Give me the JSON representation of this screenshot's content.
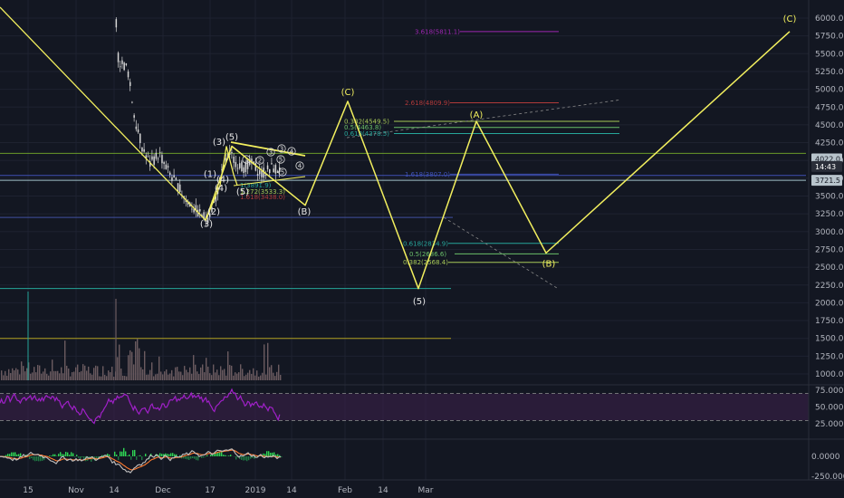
{
  "colors": {
    "background": "#131722",
    "grid": "#1e2230",
    "axis_text": "#b2b5be",
    "wave_path": "#f2ef5e",
    "wave_label": "#e8e8e8",
    "candles": "#d7d7d7",
    "volume": "#6b5b60",
    "rsi": "#a020c8",
    "rsi_band": "#3a1f4a",
    "macd_line": "#c0c0c0",
    "macd_signal": "#ff7a2f",
    "macd_hist": "#2fd655",
    "price_tag_white": "#b8c4cc",
    "price_tag_teal": "#1d6a7a",
    "price_tag_dark": "#2a2e39"
  },
  "chart_data": {
    "type": "line",
    "price_axis": {
      "ticks": [
        "6000.0",
        "5750.0",
        "5500.0",
        "5250.0",
        "5000.0",
        "4750.0",
        "4500.0",
        "4250.0",
        "4000.0",
        "3750.0",
        "3500.0",
        "3250.0",
        "3000.0",
        "2750.0",
        "2500.0",
        "2250.0",
        "2000.0",
        "1750.0",
        "1500.0",
        "1250.0",
        "1000.0"
      ],
      "values": [
        6000,
        5750,
        5500,
        5250,
        5000,
        4750,
        4500,
        4250,
        4000,
        3750,
        3500,
        3250,
        3000,
        2750,
        2500,
        2250,
        2000,
        1750,
        1500,
        1250,
        1000
      ],
      "ylim": [
        870,
        6320
      ]
    },
    "rsi_axis": {
      "ticks": [
        "75.0000",
        "50.0000",
        "25.0000"
      ],
      "values": [
        75,
        50,
        25
      ]
    },
    "macd_axis": {
      "ticks": [
        "0.0000",
        "-250.0000"
      ],
      "values": [
        0,
        -250
      ]
    },
    "x_axis": {
      "ticks": [
        "15",
        "Nov",
        "14",
        "Dec",
        "17",
        "2019",
        "14",
        "Feb",
        "14",
        "Mar"
      ]
    },
    "price_tags": [
      {
        "label": "4022.0",
        "value": 4022,
        "style": "white"
      },
      {
        "label": "14:43",
        "value": 3915,
        "style": "dark"
      },
      {
        "label": "3721.5",
        "value": 3721.5,
        "style": "white"
      }
    ],
    "wave_path": [
      {
        "label": "(3)",
        "price": 3160
      },
      {
        "label": "(4)",
        "price": 4200
      },
      {
        "label": "(5)",
        "price": 3370
      },
      {
        "label": "(C)",
        "price": 4830
      },
      {
        "label": "(5)",
        "price": 2200
      },
      {
        "label": "(A)",
        "price": 4550
      },
      {
        "label": "(B)",
        "price": 2700
      },
      {
        "label": "(C)",
        "price": 5811
      }
    ],
    "wave_labels": [
      {
        "text": "(3)",
        "price": 3120
      },
      {
        "text": "(4)",
        "price": 3620
      },
      {
        "text": "(5)",
        "price": 4340
      },
      {
        "text": "(3)",
        "price": 4270
      },
      {
        "text": "(1)",
        "price": 3820
      },
      {
        "text": "(2)",
        "price": 3290
      },
      {
        "text": "(4)",
        "price": 3740
      },
      {
        "text": "(5)",
        "price": 3570
      },
      {
        "text": "(B)",
        "price": 3290
      },
      {
        "text": "(C)",
        "price": 4970
      },
      {
        "text": "(5)",
        "price": 2030
      },
      {
        "text": "(A)",
        "price": 4650
      },
      {
        "text": "(B)",
        "price": 2560
      },
      {
        "text": "(C)",
        "price": 6000
      }
    ],
    "fib_levels": [
      {
        "label": "3.618(5811.1)",
        "price": 5811.1,
        "color": "#9c27b0"
      },
      {
        "label": "2.618(4809.9)",
        "price": 4809.9,
        "color": "#b03a3a"
      },
      {
        "label": "0.382(4549.5)",
        "price": 4549.5,
        "color": "#a7c957"
      },
      {
        "label": "0.5(4463.8)",
        "price": 4463.8,
        "color": "#6abf69"
      },
      {
        "label": "0.618(4378.5)",
        "price": 4378.5,
        "color": "#26a69a"
      },
      {
        "label": "1.618(3807.0)",
        "price": 3807.0,
        "color": "#3f51b5"
      },
      {
        "label": "0.618(2834.9)",
        "price": 2834.9,
        "color": "#26a69a"
      },
      {
        "label": "0.5(2686.6)",
        "price": 2686.6,
        "color": "#6abf69"
      },
      {
        "label": "0.382(2568.4)",
        "price": 2568.4,
        "color": "#a7c957"
      }
    ],
    "inner_fib_labels": [
      {
        "label": "1(3891.9)",
        "price": 3891.9,
        "color": "#26a69a"
      },
      {
        "label": "1.272(3533.3)",
        "price": 3533.3,
        "color": "#a7c957"
      },
      {
        "label": "1.618(3438.0)",
        "price": 3438.0,
        "color": "#b03a3a"
      }
    ],
    "horizontal_lines": [
      {
        "price": 4100,
        "color": "#6a9a2a"
      },
      {
        "price": 3790,
        "color": "#3f51b5"
      },
      {
        "price": 3721.5,
        "color": "#a0c0c8"
      },
      {
        "price": 3200,
        "color": "#4050a0"
      },
      {
        "price": 2200,
        "color": "#26a69a"
      },
      {
        "price": 1500,
        "color": "#b0a020"
      }
    ],
    "rsi_band": {
      "upper": 70,
      "lower": 30
    },
    "grid": true
  }
}
